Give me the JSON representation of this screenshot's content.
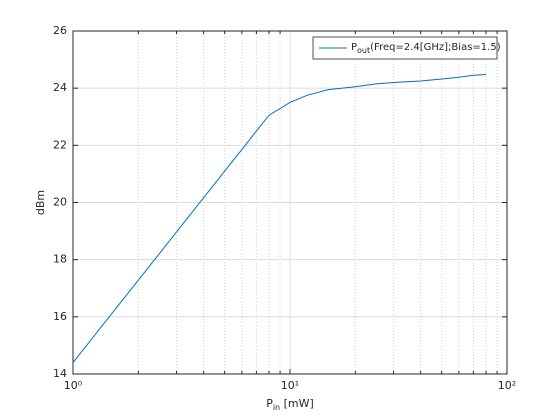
{
  "chart_data": {
    "type": "line",
    "x_label": {
      "base": "P",
      "sub": "in",
      "rest": " [mW]"
    },
    "y_label": "dBm",
    "x": [
      1,
      1.5,
      2,
      3,
      4,
      5,
      6,
      7,
      8,
      10,
      12,
      15,
      20,
      25,
      30,
      40,
      50,
      60,
      70,
      80
    ],
    "series": [
      {
        "name": {
          "base": "P",
          "sub": "out",
          "rest": "(Freq=2.4[GHz];Bias=1.5)"
        },
        "color": "#0072bd",
        "values": [
          14.4,
          16.09,
          17.28,
          18.97,
          20.17,
          21.1,
          21.85,
          22.5,
          23.05,
          23.5,
          23.75,
          23.95,
          24.05,
          24.15,
          24.2,
          24.25,
          24.32,
          24.38,
          24.45,
          24.48
        ]
      }
    ],
    "xscale": "log",
    "xlim": [
      1,
      100
    ],
    "xticks": [
      {
        "value": 1,
        "label": "10⁰"
      },
      {
        "value": 10,
        "label": "10¹"
      },
      {
        "value": 100,
        "label": "10²"
      }
    ],
    "xminorticks": [
      2,
      3,
      4,
      5,
      6,
      7,
      8,
      9,
      20,
      30,
      40,
      50,
      60,
      70,
      80,
      90
    ],
    "ylim": [
      14,
      26
    ],
    "yticks": [
      14,
      16,
      18,
      20,
      22,
      24,
      26
    ],
    "grid": true,
    "legend": "northeast"
  }
}
